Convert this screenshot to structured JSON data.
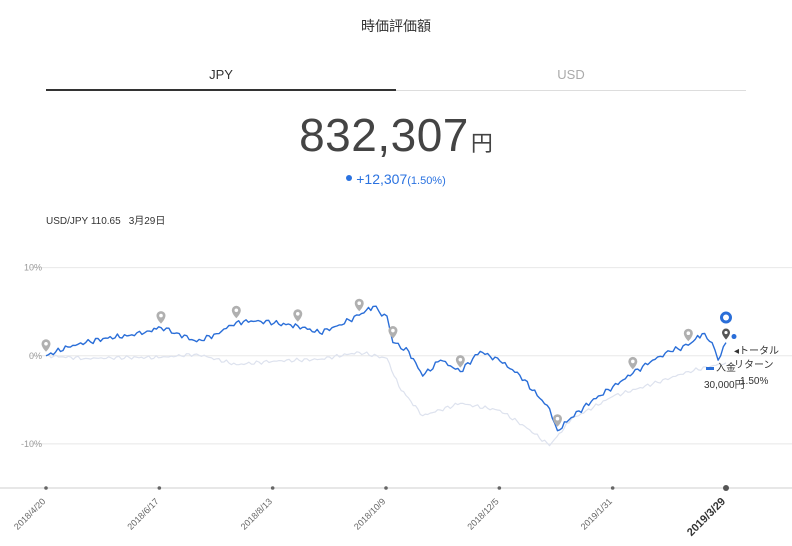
{
  "header": {
    "title": "時価評価額"
  },
  "tabs": [
    {
      "label": "JPY",
      "active": true
    },
    {
      "label": "USD",
      "active": false
    }
  ],
  "valuation": {
    "amount": "832,307",
    "unit": "円",
    "change": "+12,307",
    "change_pct": "(1.50%)"
  },
  "fx": {
    "pair": "USD/JPY 110.65",
    "date": "3月29日"
  },
  "legend": {
    "deposit_label": "入金",
    "deposit_value": "30,000円",
    "total_return_label": "トータル\nリターン",
    "total_return_value": "1.50%"
  },
  "colors": {
    "main_series": "#2a6ed8",
    "benchmark_series": "#dde2ee",
    "grid": "#e8e8e8",
    "marker": "#b0b0b0"
  },
  "chart_data": {
    "type": "line",
    "y_ticks": [
      "10%",
      "0%",
      "-10%"
    ],
    "ylim": [
      -15,
      12
    ],
    "x_ticks": [
      "2018/4/20",
      "2018/6/17",
      "2018/8/13",
      "2018/10/9",
      "2018/12/5",
      "2019/1/31",
      "2019/3/29"
    ],
    "x_range": [
      "2018-04-20",
      "2019-03-29"
    ],
    "series": [
      {
        "values": [
          [
            "2018-04-20",
            0.0
          ],
          [
            "2018-05-01",
            1.0
          ],
          [
            "2018-05-10",
            1.5
          ],
          [
            "2018-05-20",
            2.0
          ],
          [
            "2018-06-01",
            2.3
          ],
          [
            "2018-06-10",
            2.8
          ],
          [
            "2018-06-17",
            3.2
          ],
          [
            "2018-06-25",
            2.6
          ],
          [
            "2018-07-05",
            1.6
          ],
          [
            "2018-07-15",
            2.5
          ],
          [
            "2018-07-25",
            3.8
          ],
          [
            "2018-08-05",
            4.0
          ],
          [
            "2018-08-13",
            3.7
          ],
          [
            "2018-08-25",
            3.4
          ],
          [
            "2018-09-05",
            2.6
          ],
          [
            "2018-09-15",
            3.5
          ],
          [
            "2018-09-25",
            4.6
          ],
          [
            "2018-10-02",
            5.6
          ],
          [
            "2018-10-05",
            5.0
          ],
          [
            "2018-10-09",
            4.5
          ],
          [
            "2018-10-12",
            1.5
          ],
          [
            "2018-10-20",
            0.5
          ],
          [
            "2018-10-27",
            -2.3
          ],
          [
            "2018-11-05",
            -0.5
          ],
          [
            "2018-11-15",
            -1.8
          ],
          [
            "2018-11-25",
            0.5
          ],
          [
            "2018-12-05",
            -0.6
          ],
          [
            "2018-12-15",
            -2.2
          ],
          [
            "2018-12-25",
            -4.8
          ],
          [
            "2018-12-30",
            -6.0
          ],
          [
            "2019-01-03",
            -8.5
          ],
          [
            "2019-01-10",
            -7.0
          ],
          [
            "2019-01-20",
            -5.2
          ],
          [
            "2019-01-31",
            -3.5
          ],
          [
            "2019-02-10",
            -2.0
          ],
          [
            "2019-02-20",
            -0.5
          ],
          [
            "2019-03-01",
            0.5
          ],
          [
            "2019-03-10",
            1.2
          ],
          [
            "2019-03-17",
            2.5
          ],
          [
            "2019-03-22",
            1.5
          ],
          [
            "2019-03-25",
            -0.5
          ],
          [
            "2019-03-29",
            1.5
          ]
        ]
      },
      {
        "values": [
          [
            "2018-04-20",
            0.0
          ],
          [
            "2018-05-10",
            -0.3
          ],
          [
            "2018-06-01",
            -0.2
          ],
          [
            "2018-06-17",
            -0.2
          ],
          [
            "2018-07-05",
            0.2
          ],
          [
            "2018-07-25",
            -1.0
          ],
          [
            "2018-08-13",
            -0.6
          ],
          [
            "2018-09-05",
            -0.4
          ],
          [
            "2018-09-25",
            0.4
          ],
          [
            "2018-10-09",
            -0.3
          ],
          [
            "2018-10-15",
            -3.5
          ],
          [
            "2018-10-27",
            -6.8
          ],
          [
            "2018-11-15",
            -5.4
          ],
          [
            "2018-12-05",
            -6.2
          ],
          [
            "2018-12-20",
            -8.4
          ],
          [
            "2018-12-30",
            -10.2
          ],
          [
            "2019-01-10",
            -7.2
          ],
          [
            "2019-01-31",
            -4.6
          ],
          [
            "2019-02-20",
            -3.2
          ],
          [
            "2019-03-10",
            -1.8
          ],
          [
            "2019-03-29",
            -0.8
          ]
        ]
      }
    ],
    "markers": [
      [
        "2018-04-20",
        0.0
      ],
      [
        "2018-06-17",
        3.2
      ],
      [
        "2018-07-25",
        3.8
      ],
      [
        "2018-08-25",
        3.4
      ],
      [
        "2018-09-25",
        4.6
      ],
      [
        "2018-10-12",
        1.5
      ],
      [
        "2018-11-15",
        -1.8
      ],
      [
        "2019-01-03",
        -8.5
      ],
      [
        "2019-02-10",
        -2.0
      ],
      [
        "2019-03-10",
        1.2
      ],
      [
        "2019-03-29",
        1.5
      ]
    ]
  }
}
